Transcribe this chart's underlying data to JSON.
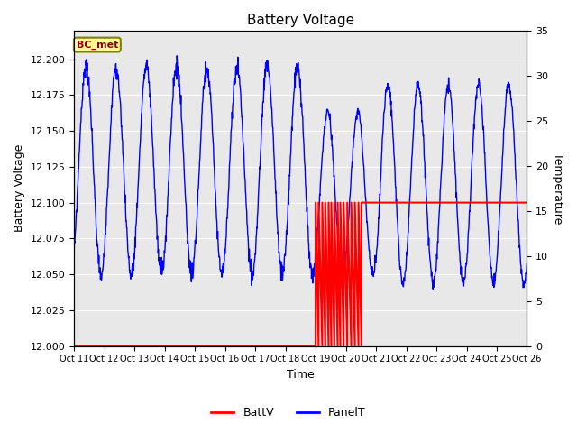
{
  "title": "Battery Voltage",
  "ylabel_left": "Battery Voltage",
  "ylabel_right": "Temperature",
  "xlabel": "Time",
  "ylim_left": [
    12.0,
    12.22
  ],
  "ylim_right": [
    0,
    35
  ],
  "background_color": "#ffffff",
  "plot_bg_color": "#e8e8e8",
  "grid_color": "#ffffff",
  "annotation_text": "BC_met",
  "annotation_bg": "#ffff99",
  "annotation_border": "#808000",
  "annotation_text_color": "#8b0000",
  "x_tick_labels": [
    "Oct 11",
    "Oct 12",
    "Oct 13",
    "Oct 14",
    "Oct 15",
    "Oct 16",
    "Oct 17",
    "Oct 18",
    "Oct 19",
    "Oct 20",
    "Oct 21",
    "Oct 22",
    "Oct 23",
    "Oct 24",
    "Oct 25",
    "Oct 26"
  ],
  "batt_color": "#ff0000",
  "panel_color": "#0000ff",
  "legend_entries": [
    "BattV",
    "PanelT"
  ],
  "temp_min": 0,
  "temp_max": 35,
  "volt_min": 12.0,
  "volt_max": 12.22
}
